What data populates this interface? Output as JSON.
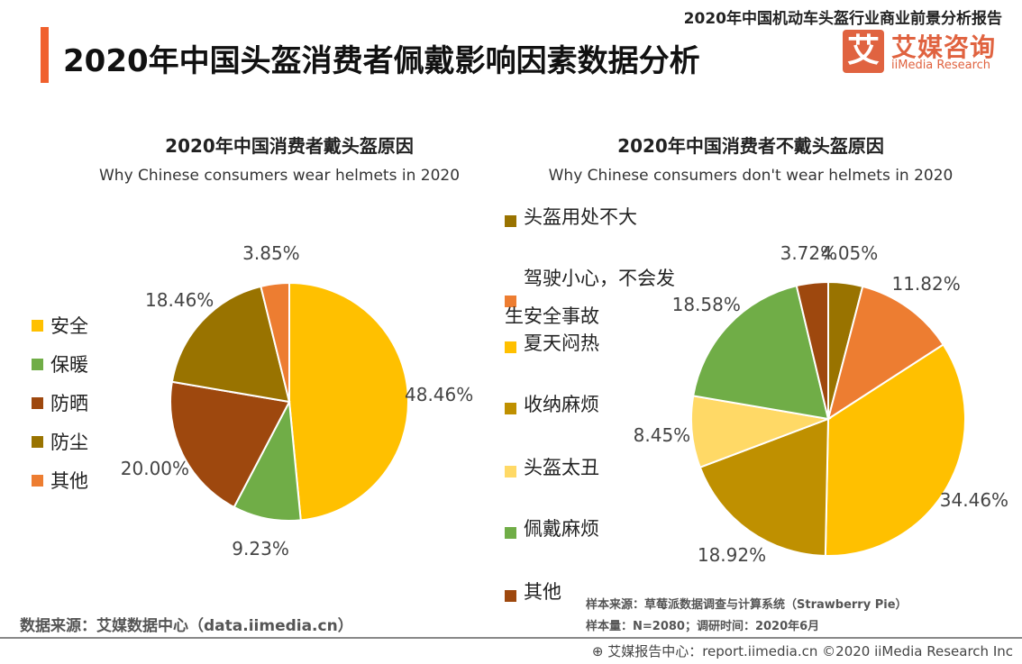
{
  "header": {
    "title": "2020年中国头盔消费者佩戴影响因素数据分析",
    "report_name": "2020年中国机动车头盔行业商业前景分析报告",
    "logo_mark": "艾",
    "logo_cn": "艾媒咨询",
    "logo_en": "iiMedia Research"
  },
  "chart_data": [
    {
      "type": "pie",
      "title": "2020年中国消费者戴头盔原因",
      "subtitle": "Why Chinese consumers wear helmets in 2020",
      "categories": [
        "安全",
        "保暖",
        "防晒",
        "防尘",
        "其他"
      ],
      "values": [
        48.46,
        9.23,
        20.0,
        18.46,
        3.85
      ],
      "labels": [
        "48.46%",
        "9.23%",
        "20.00%",
        "18.46%",
        "3.85%"
      ],
      "colors": [
        "#FFC000",
        "#70AD47",
        "#9E480E",
        "#997300",
        "#ED7D31"
      ],
      "legend": "left"
    },
    {
      "type": "pie",
      "title": "2020年中国消费者不戴头盔原因",
      "subtitle": "Why Chinese consumers don't wear helmets in 2020",
      "categories": [
        "头盔用处不大",
        "驾驶小心，不会发生安全事故",
        "夏天闷热",
        "收纳麻烦",
        "头盔太丑",
        "佩戴麻烦",
        "其他"
      ],
      "legend_lines": [
        [
          "头盔用处不大"
        ],
        [
          "驾驶小心，不会发",
          "生安全事故"
        ],
        [
          "夏天闷热"
        ],
        [
          "收纳麻烦"
        ],
        [
          "头盔太丑"
        ],
        [
          "佩戴麻烦"
        ],
        [
          "其他"
        ]
      ],
      "values": [
        4.05,
        11.82,
        34.46,
        18.92,
        8.45,
        18.58,
        3.72
      ],
      "labels": [
        "4.05%",
        "11.82%",
        "34.46%",
        "18.92%",
        "8.45%",
        "18.58%",
        "3.72%"
      ],
      "colors": [
        "#997300",
        "#ED7D31",
        "#FFC000",
        "#BF9000",
        "#FFD966",
        "#70AD47",
        "#9E480E"
      ],
      "legend": "left"
    }
  ],
  "footer": {
    "source": "数据来源：艾媒数据中心（data.iimedia.cn）",
    "sample_source": "样本来源：草莓派数据调查与计算系统（Strawberry Pie）",
    "sample_size": "样本量：N=2080；调研时间：2020年6月",
    "copyright": "艾媒报告中心：report.iimedia.cn   ©2020  iiMedia Research  Inc"
  }
}
